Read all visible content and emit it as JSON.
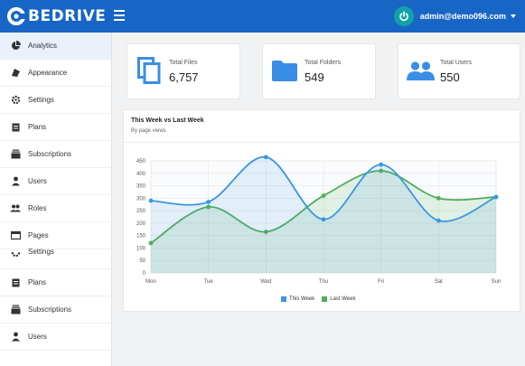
{
  "app": {
    "logo_text": "BEDRIVE",
    "user_email": "admin@demo096.com"
  },
  "sidebar": {
    "items": [
      {
        "label": "Analytics",
        "icon": "pie-chart-icon",
        "active": true
      },
      {
        "label": "Appearance",
        "icon": "brush-icon"
      },
      {
        "label": "Settings",
        "icon": "gear-icon"
      },
      {
        "label": "Plans",
        "icon": "clipboard-icon"
      },
      {
        "label": "Subscriptions",
        "icon": "subscriptions-icon"
      },
      {
        "label": "Users",
        "icon": "person-icon"
      },
      {
        "label": "Roles",
        "icon": "people-icon"
      },
      {
        "label": "Pages",
        "icon": "page-icon"
      },
      {
        "label": "Settings",
        "icon": "gear-icon"
      },
      {
        "label": "Plans",
        "icon": "clipboard-icon"
      },
      {
        "label": "Subscriptions",
        "icon": "subscriptions-icon"
      },
      {
        "label": "Users",
        "icon": "person-icon"
      }
    ]
  },
  "stats": [
    {
      "label": "Total Files",
      "value": "6,757",
      "icon": "files-icon"
    },
    {
      "label": "Total Folders",
      "value": "549",
      "icon": "folder-icon"
    },
    {
      "label": "Total Users",
      "value": "550",
      "icon": "users-icon"
    }
  ],
  "colors": {
    "primary": "#1766c5",
    "this_week": "#3a97e0",
    "last_week": "#4fae5c"
  },
  "chart_data": {
    "type": "line",
    "title": "This Week vs Last Week",
    "subtitle": "By page views",
    "categories": [
      "Mon",
      "Tue",
      "Wed",
      "Thu",
      "Fri",
      "Sat",
      "Sun"
    ],
    "ylim": [
      0,
      450
    ],
    "yticks": [
      0,
      50,
      100,
      150,
      200,
      250,
      300,
      350,
      400,
      450
    ],
    "series": [
      {
        "name": "This Week",
        "values": [
          290,
          285,
          465,
          215,
          435,
          210,
          305
        ]
      },
      {
        "name": "Last Week",
        "values": [
          120,
          265,
          165,
          310,
          410,
          300,
          305
        ]
      }
    ],
    "grid": true,
    "legend_position": "bottom"
  }
}
